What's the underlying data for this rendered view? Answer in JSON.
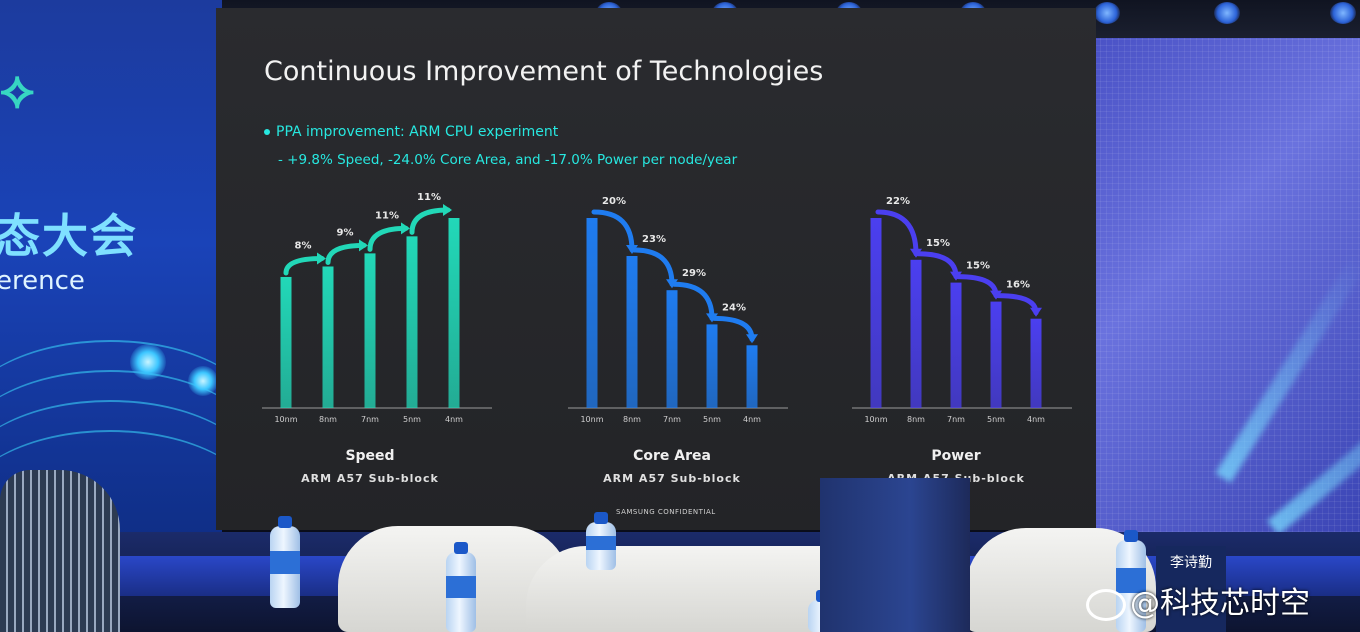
{
  "slide": {
    "title": "Continuous Improvement of Technologies",
    "bullet": "PPA improvement:  ARM CPU experiment",
    "sub_bullet": "- +9.8% Speed, -24.0% Core Area, and -17.0% Power per node/year",
    "footer": "SAMSUNG CONFIDENTIAL"
  },
  "venue": {
    "banner_text_zh": "态大会",
    "banner_text_en": "erence",
    "nameplate": "李诗勤",
    "watermark": "@科技芯时空"
  },
  "colors": {
    "speed": "#22d8b8",
    "core_area": "#1f7cf0",
    "power": "#4b3ff0",
    "text": "#27e8e0"
  },
  "chart_data": [
    {
      "type": "bar",
      "title": "Speed",
      "subtitle": "ARM A57 Sub-block",
      "categories": [
        "10nm",
        "8nm",
        "7nm",
        "5nm",
        "4nm"
      ],
      "values": [
        1.0,
        1.08,
        1.18,
        1.31,
        1.45
      ],
      "step_labels": [
        "8%",
        "9%",
        "11%",
        "11%"
      ],
      "trend": "up"
    },
    {
      "type": "bar",
      "title": "Core Area",
      "subtitle": "ARM A57 Sub-block",
      "categories": [
        "10nm",
        "8nm",
        "7nm",
        "5nm",
        "4nm"
      ],
      "values": [
        1.0,
        0.8,
        0.62,
        0.44,
        0.33
      ],
      "step_labels": [
        "20%",
        "23%",
        "29%",
        "24%"
      ],
      "trend": "down"
    },
    {
      "type": "bar",
      "title": "Power",
      "subtitle": "ARM A57 Sub-block",
      "categories": [
        "10nm",
        "8nm",
        "7nm",
        "5nm",
        "4nm"
      ],
      "values": [
        1.0,
        0.78,
        0.66,
        0.56,
        0.47
      ],
      "step_labels": [
        "22%",
        "15%",
        "15%",
        "16%"
      ],
      "trend": "down"
    }
  ]
}
